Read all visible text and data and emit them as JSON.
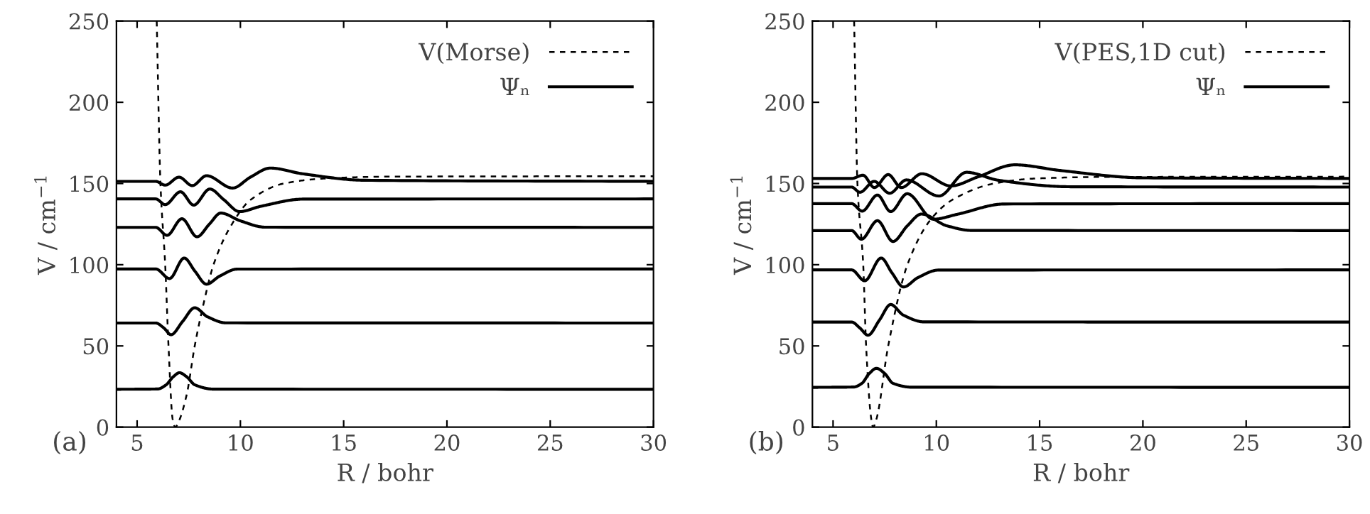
{
  "chart_data": [
    {
      "type": "line",
      "xlabel": "R / bohr",
      "ylabel": "V / cm$^{−1}$",
      "xlim": [
        4,
        30
      ],
      "ylim": [
        0,
        250
      ],
      "xticks": [
        5,
        10,
        15,
        20,
        25,
        30
      ],
      "yticks": [
        0,
        50,
        100,
        150,
        200,
        250
      ],
      "grid": false,
      "legend": "top right",
      "annotations": [
        "(a)"
      ],
      "series": [
        {
          "name": "V(Morse)",
          "color": "#000000",
          "line_style": "dashed",
          "x": [
            5.95,
            6.13,
            6.36,
            6.52,
            6.72,
            6.85,
            7.0,
            7.4,
            7.79,
            8.2,
            8.7,
            9.5,
            10.5,
            12.1,
            14,
            17,
            30
          ],
          "values": [
            250,
            150,
            100,
            50,
            5,
            0,
            3,
            20,
            50,
            75,
            100,
            123,
            140,
            150,
            153,
            154.2,
            154.5
          ]
        },
        {
          "name": "Ψₙ",
          "color": "#000000",
          "line_style": "solid",
          "x": [
            4,
            6.0,
            6.4,
            6.75,
            7.05,
            7.4,
            7.8,
            8.7,
            30
          ],
          "values": [
            23.3,
            23.5,
            26,
            31,
            33.5,
            31,
            26,
            23.4,
            23.3
          ]
        },
        {
          "color": "#000000",
          "line_style": "solid",
          "x": [
            4,
            5.9,
            6.3,
            6.64,
            7.2,
            7.79,
            8.4,
            9.3,
            30
          ],
          "values": [
            64.1,
            64.1,
            61,
            56.9,
            65,
            73.5,
            68,
            64.2,
            64.1
          ]
        },
        {
          "color": "#000000",
          "line_style": "solid",
          "x": [
            4,
            5.9,
            6.57,
            7.28,
            7.8,
            8.36,
            9.0,
            9.85,
            30
          ],
          "values": [
            97.4,
            97.4,
            91.5,
            104.1,
            96,
            88,
            93,
            97.3,
            97.4
          ]
        },
        {
          "color": "#000000",
          "line_style": "solid",
          "x": [
            4,
            5.9,
            6.45,
            7.17,
            7.9,
            8.5,
            9.05,
            10,
            11.2,
            30
          ],
          "values": [
            123,
            123,
            118.1,
            128.3,
            117.2,
            125,
            131.8,
            127,
            123.1,
            123
          ]
        },
        {
          "color": "#000000",
          "line_style": "solid",
          "x": [
            4,
            5.9,
            6.36,
            7.1,
            7.74,
            8.52,
            9.2,
            9.96,
            11,
            13.06,
            30
          ],
          "values": [
            140.5,
            140.5,
            137,
            144.9,
            136.7,
            146.6,
            140,
            132.7,
            136,
            140.4,
            140.5
          ]
        },
        {
          "color": "#000000",
          "line_style": "solid",
          "x": [
            4,
            5.9,
            6.36,
            7.03,
            7.67,
            8.36,
            9.62,
            10.5,
            11.45,
            13,
            16,
            30
          ],
          "values": [
            151.3,
            151.3,
            149,
            153.9,
            148.7,
            154.8,
            147.2,
            154,
            159.5,
            156,
            152,
            151.3
          ]
        }
      ]
    },
    {
      "type": "line",
      "xlabel": "R / bohr",
      "ylabel": "V / cm$^{−1}$",
      "xlim": [
        4,
        30
      ],
      "ylim": [
        0,
        250
      ],
      "xticks": [
        5,
        10,
        15,
        20,
        25,
        30
      ],
      "yticks": [
        0,
        50,
        100,
        150,
        200,
        250
      ],
      "grid": false,
      "legend": "top right",
      "annotations": [
        "(b)"
      ],
      "series": [
        {
          "name": "V(PES,1D cut)",
          "color": "#000000",
          "line_style": "dashed",
          "x": [
            6.02,
            6.18,
            6.46,
            6.6,
            6.85,
            6.94,
            7.1,
            7.67,
            8.6,
            9.74,
            10.78,
            12.8,
            14.7,
            18,
            30
          ],
          "values": [
            250,
            150,
            100,
            50,
            5,
            0,
            5,
            50,
            100,
            128,
            140,
            150,
            153,
            154,
            154.2
          ]
        },
        {
          "name": "Ψₙ",
          "color": "#000000",
          "line_style": "solid",
          "x": [
            4,
            6.0,
            6.4,
            6.75,
            7.1,
            7.5,
            7.9,
            8.8,
            30
          ],
          "values": [
            24.5,
            24.7,
            27,
            33,
            36.2,
            33,
            27,
            24.6,
            24.5
          ]
        },
        {
          "color": "#000000",
          "line_style": "solid",
          "x": [
            4,
            5.9,
            6.3,
            6.69,
            7.25,
            7.79,
            8.4,
            9.4,
            30
          ],
          "values": [
            64.7,
            64.7,
            61,
            56.6,
            66,
            75.5,
            69,
            64.8,
            64.7
          ]
        },
        {
          "color": "#000000",
          "line_style": "solid",
          "x": [
            4,
            5.9,
            6.53,
            7.33,
            7.85,
            8.41,
            9.1,
            10.1,
            30
          ],
          "values": [
            96.8,
            96.8,
            90.1,
            104.1,
            95,
            86.3,
            92,
            96.7,
            96.8
          ]
        },
        {
          "color": "#000000",
          "line_style": "solid",
          "x": [
            4,
            5.9,
            6.37,
            7.15,
            7.9,
            8.6,
            9.28,
            10.5,
            11.7,
            30
          ],
          "values": [
            121,
            121,
            115.7,
            127.1,
            114.3,
            124,
            131.2,
            124,
            121.1,
            121
          ]
        },
        {
          "color": "#000000",
          "line_style": "solid",
          "x": [
            4,
            5.9,
            6.41,
            7.15,
            7.79,
            8.59,
            9.86,
            11,
            13.3,
            30
          ],
          "values": [
            137.6,
            137.6,
            133,
            142.9,
            132.7,
            143.7,
            128,
            131,
            137.4,
            137.6
          ]
        },
        {
          "color": "#000000",
          "line_style": "solid",
          "x": [
            4,
            5.9,
            6.3,
            6.99,
            7.74,
            8.55,
            10.13,
            11.46,
            13,
            16.5,
            30
          ],
          "values": [
            147.8,
            147.8,
            144.6,
            151.3,
            144,
            152.2,
            142.3,
            156.9,
            152,
            148,
            147.8
          ]
        },
        {
          "color": "#000000",
          "line_style": "solid",
          "x": [
            4,
            5.9,
            6.45,
            7.0,
            7.67,
            8.3,
            9.3,
            10.7,
            12,
            13.8,
            16,
            20,
            30
          ],
          "values": [
            153.1,
            153.1,
            155.1,
            147.5,
            155.5,
            147.5,
            156,
            148.5,
            154,
            161.5,
            158,
            153.5,
            153.1
          ]
        }
      ]
    }
  ]
}
